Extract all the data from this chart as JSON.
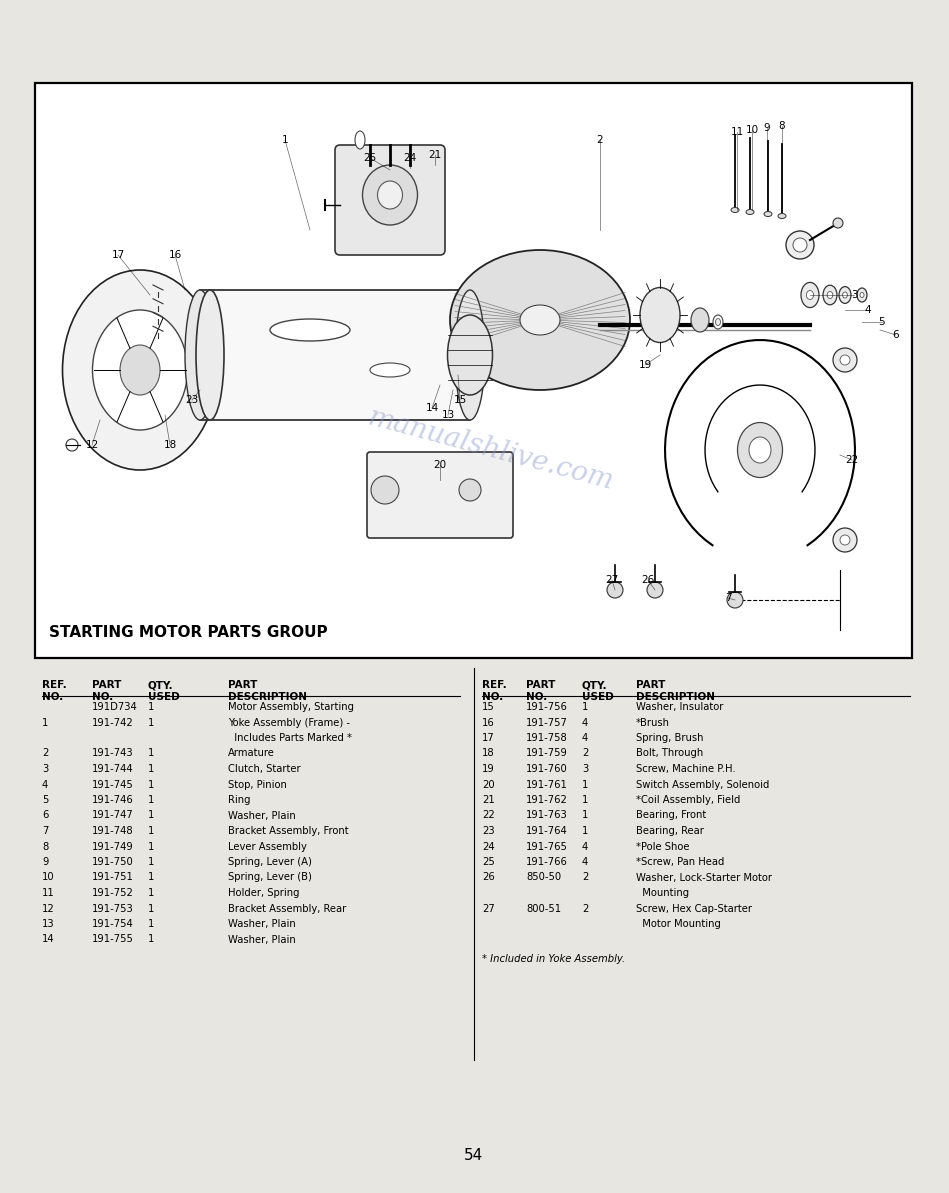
{
  "page_bg": "#e8e6e0",
  "box_bg": "#ffffff",
  "title": "STARTING MOTOR PARTS GROUP",
  "page_number": "54",
  "left_rows": [
    [
      "",
      "191D734",
      "1",
      "Motor Assembly, Starting"
    ],
    [
      "1",
      "191-742",
      "1",
      "Yoke Assembly (Frame) -"
    ],
    [
      "",
      "",
      "",
      "  Includes Parts Marked *"
    ],
    [
      "2",
      "191-743",
      "1",
      "Armature"
    ],
    [
      "3",
      "191-744",
      "1",
      "Clutch, Starter"
    ],
    [
      "4",
      "191-745",
      "1",
      "Stop, Pinion"
    ],
    [
      "5",
      "191-746",
      "1",
      "Ring"
    ],
    [
      "6",
      "191-747",
      "1",
      "Washer, Plain"
    ],
    [
      "7",
      "191-748",
      "1",
      "Bracket Assembly, Front"
    ],
    [
      "8",
      "191-749",
      "1",
      "Lever Assembly"
    ],
    [
      "9",
      "191-750",
      "1",
      "Spring, Lever (A)"
    ],
    [
      "10",
      "191-751",
      "1",
      "Spring, Lever (B)"
    ],
    [
      "11",
      "191-752",
      "1",
      "Holder, Spring"
    ],
    [
      "12",
      "191-753",
      "1",
      "Bracket Assembly, Rear"
    ],
    [
      "13",
      "191-754",
      "1",
      "Washer, Plain"
    ],
    [
      "14",
      "191-755",
      "1",
      "Washer, Plain"
    ]
  ],
  "right_rows": [
    [
      "15",
      "191-756",
      "1",
      "Washer, Insulator"
    ],
    [
      "16",
      "191-757",
      "4",
      "*Brush"
    ],
    [
      "17",
      "191-758",
      "4",
      "Spring, Brush"
    ],
    [
      "18",
      "191-759",
      "2",
      "Bolt, Through"
    ],
    [
      "19",
      "191-760",
      "3",
      "Screw, Machine P.H."
    ],
    [
      "20",
      "191-761",
      "1",
      "Switch Assembly, Solenoid"
    ],
    [
      "21",
      "191-762",
      "1",
      "*Coil Assembly, Field"
    ],
    [
      "22",
      "191-763",
      "1",
      "Bearing, Front"
    ],
    [
      "23",
      "191-764",
      "1",
      "Bearing, Rear"
    ],
    [
      "24",
      "191-765",
      "4",
      "*Pole Shoe"
    ],
    [
      "25",
      "191-766",
      "4",
      "*Screw, Pan Head"
    ],
    [
      "26",
      "850-50",
      "2",
      "Washer, Lock-Starter Motor"
    ],
    [
      "",
      "",
      "",
      "  Mounting"
    ],
    [
      "27",
      "800-51",
      "2",
      "Screw, Hex Cap-Starter"
    ],
    [
      "",
      "",
      "",
      "  Motor Mounting"
    ]
  ],
  "footnote": "* Included in Yoke Assembly.",
  "watermark": "manualshlive.com",
  "diagram_label": "STARTING MOTOR PARTS GROUP",
  "header_left": [
    "REF.",
    "PART",
    "QTY.",
    "PART"
  ],
  "header_left2": [
    "NO.",
    "NO.",
    "USED",
    "DESCRIPTION"
  ],
  "header_right": [
    "REF.",
    "PART",
    "QTY.",
    "PART"
  ],
  "header_right2": [
    "NO.",
    "NO.",
    "USED",
    "DESCRIPTION"
  ]
}
